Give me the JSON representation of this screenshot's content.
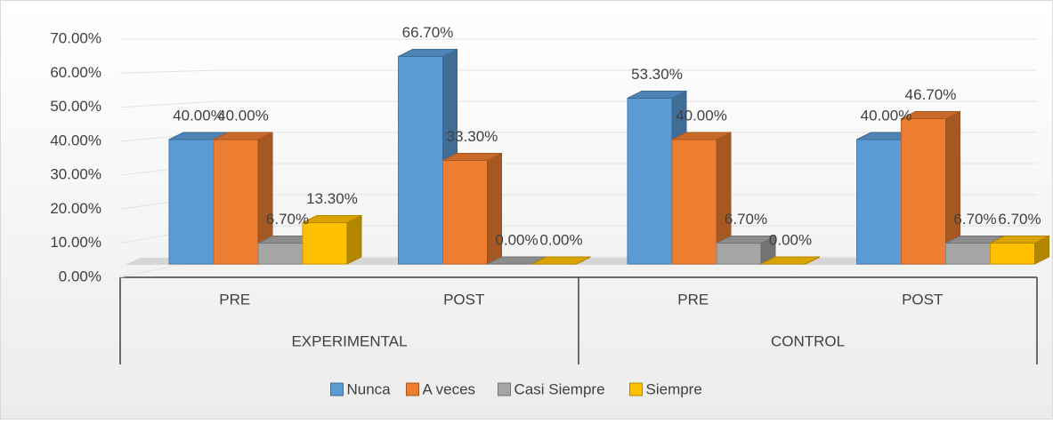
{
  "chart_data": {
    "type": "bar3d",
    "categories": [
      "PRE",
      "POST",
      "PRE",
      "POST"
    ],
    "groups": [
      {
        "name": "EXPERIMENTAL",
        "span": 2
      },
      {
        "name": "CONTROL",
        "span": 2
      }
    ],
    "series": [
      {
        "name": "Nunca",
        "color": "#5b9bd5",
        "values": [
          40,
          66.7,
          53.3,
          40
        ],
        "value_labels": [
          "40.00%",
          "66.70%",
          "53.30%",
          "40.00%"
        ]
      },
      {
        "name": "A veces",
        "color": "#ed7d31",
        "values": [
          40,
          33.3,
          40,
          46.7
        ],
        "value_labels": [
          "40.00%",
          "33.30%",
          "40.00%",
          "46.70%"
        ]
      },
      {
        "name": "Casi Siempre",
        "color": "#a5a5a5",
        "values": [
          6.7,
          0,
          6.7,
          6.7
        ],
        "value_labels": [
          "6.70%",
          "0.00%",
          "6.70%",
          "6.70%"
        ]
      },
      {
        "name": "Siempre",
        "color": "#ffc000",
        "values": [
          13.3,
          0,
          0,
          6.7
        ],
        "value_labels": [
          "13.30%",
          "0.00%",
          "0.00%",
          "6.70%"
        ]
      }
    ],
    "ylim": [
      0,
      70
    ],
    "yticks": [
      {
        "value": 0,
        "label": "0.00%"
      },
      {
        "value": 10,
        "label": "10.00%"
      },
      {
        "value": 20,
        "label": "20.00%"
      },
      {
        "value": 30,
        "label": "30.00%"
      },
      {
        "value": 40,
        "label": "40.00%"
      },
      {
        "value": 50,
        "label": "50.00%"
      },
      {
        "value": 60,
        "label": "60.00%"
      },
      {
        "value": 70,
        "label": "70.00%"
      }
    ],
    "grid": true,
    "legend": "bottom"
  }
}
